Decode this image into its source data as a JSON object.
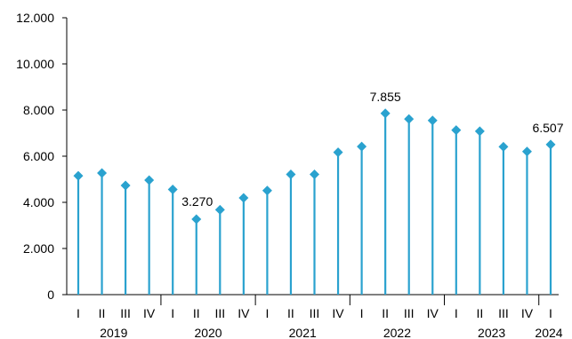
{
  "chart_data": {
    "type": "lollipop",
    "series_color": "#2aa2cf",
    "ylim": [
      0,
      12000
    ],
    "y_ticks": [
      0,
      2000,
      4000,
      6000,
      8000,
      10000,
      12000
    ],
    "y_tick_labels": [
      "0",
      "2.000",
      "4.000",
      "6.000",
      "8.000",
      "10.000",
      "12.000"
    ],
    "grid": false,
    "legend": "none",
    "years": [
      {
        "label": "2019",
        "quarters": [
          "I",
          "II",
          "III",
          "IV"
        ]
      },
      {
        "label": "2020",
        "quarters": [
          "I",
          "II",
          "III",
          "IV"
        ]
      },
      {
        "label": "2021",
        "quarters": [
          "I",
          "II",
          "III",
          "IV"
        ]
      },
      {
        "label": "2022",
        "quarters": [
          "I",
          "II",
          "III",
          "IV"
        ]
      },
      {
        "label": "2023",
        "quarters": [
          "I",
          "II",
          "III",
          "IV"
        ]
      },
      {
        "label": "2024",
        "quarters": [
          "I"
        ]
      }
    ],
    "values": [
      5150,
      5270,
      4730,
      4960,
      4560,
      3270,
      3680,
      4190,
      4510,
      5210,
      5210,
      6170,
      6420,
      7855,
      7610,
      7550,
      7130,
      7080,
      6410,
      6200,
      6507
    ],
    "data_labels": [
      {
        "index": 5,
        "text": "3.270"
      },
      {
        "index": 13,
        "text": "7.855"
      },
      {
        "index": 20,
        "text": "6.507"
      }
    ]
  }
}
